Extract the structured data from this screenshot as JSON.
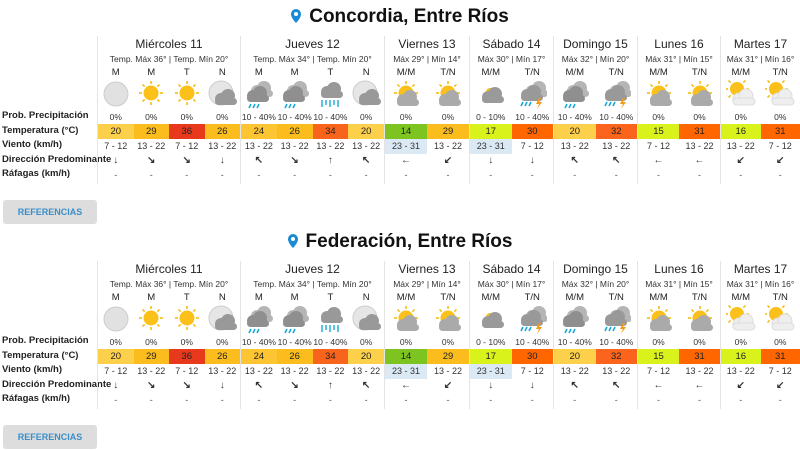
{
  "labels": {
    "prob": "Prob. Precipitación",
    "temp": "Temperatura (°C)",
    "wind": "Viento (km/h)",
    "dir": "Dirección Predominante",
    "raf": "Ráfagas (km/h)"
  },
  "button_label": "REFERENCIAS",
  "accent": "#1a8ad4",
  "locations": [
    {
      "title": "Concordia, Entre Ríos"
    },
    {
      "title": "Federación, Entre Ríos"
    }
  ],
  "days": [
    {
      "name": "Miércoles 11",
      "sub": "Temp. Máx 36° | Temp. Mín 20°",
      "slots": [
        {
          "p": "M",
          "icon": "moon",
          "prob": "0%",
          "t": "20",
          "tc": "#fdd04c",
          "w": "7 - 12",
          "d": "↓",
          "r": "-"
        },
        {
          "p": "M",
          "icon": "sun",
          "prob": "0%",
          "t": "29",
          "tc": "#fbbd1e",
          "w": "13 - 22",
          "d": "↘",
          "r": "-"
        },
        {
          "p": "T",
          "icon": "sun",
          "prob": "0%",
          "t": "36",
          "tc": "#e8391c",
          "w": "7 - 12",
          "d": "↘",
          "r": "-"
        },
        {
          "p": "N",
          "icon": "moon-cloud",
          "prob": "0%",
          "t": "26",
          "tc": "#fbbd1e",
          "w": "13 - 22",
          "d": "↓",
          "r": "-"
        }
      ]
    },
    {
      "name": "Jueves 12",
      "sub": "Temp. Máx 34° | Temp. Mín 20°",
      "slots": [
        {
          "p": "M",
          "icon": "storm",
          "prob": "10 - 40%",
          "t": "24",
          "tc": "#fdc532",
          "w": "13 - 22",
          "d": "↖",
          "r": "-"
        },
        {
          "p": "M",
          "icon": "storm",
          "prob": "10 - 40%",
          "t": "26",
          "tc": "#fbbd1e",
          "w": "13 - 22",
          "d": "↘",
          "r": "-"
        },
        {
          "p": "T",
          "icon": "rain-sun",
          "prob": "10 - 40%",
          "t": "34",
          "tc": "#f8641c",
          "w": "13 - 22",
          "d": "↑",
          "r": "-"
        },
        {
          "p": "N",
          "icon": "moon-cloud",
          "prob": "0%",
          "t": "20",
          "tc": "#fdd04c",
          "w": "13 - 22",
          "d": "↖",
          "r": "-"
        }
      ]
    },
    {
      "name": "Viernes 13",
      "sub": "Máx 29° | Mín 14°",
      "slots": [
        {
          "p": "M/M",
          "icon": "sun-cloud",
          "prob": "0%",
          "t": "14",
          "tc": "#7dc421",
          "w": "23 - 31",
          "wb": "#dbe9f5",
          "d": "←",
          "r": "-"
        },
        {
          "p": "T/N",
          "icon": "sun-cloud",
          "prob": "0%",
          "t": "29",
          "tc": "#fbbd1e",
          "w": "13 - 22",
          "d": "↙",
          "r": "-"
        }
      ]
    },
    {
      "name": "Sábado 14",
      "sub": "Máx 30° | Mín 17°",
      "slots": [
        {
          "p": "M/M",
          "icon": "cloud-sun",
          "prob": "0 - 10%",
          "t": "17",
          "tc": "#d9f21c",
          "w": "23 - 31",
          "wb": "#dbe9f5",
          "d": "↓",
          "r": "-"
        },
        {
          "p": "T/N",
          "icon": "thunder",
          "prob": "10 - 40%",
          "t": "30",
          "tc": "#ff6600",
          "w": "7 - 12",
          "d": "↓",
          "r": "-"
        }
      ]
    },
    {
      "name": "Domingo 15",
      "sub": "Máx 32° | Mín 20°",
      "slots": [
        {
          "p": "M/M",
          "icon": "storm",
          "prob": "10 - 40%",
          "t": "20",
          "tc": "#fdd04c",
          "w": "13 - 22",
          "d": "↖",
          "r": "-"
        },
        {
          "p": "T/N",
          "icon": "thunder",
          "prob": "10 - 40%",
          "t": "32",
          "tc": "#fb641c",
          "w": "13 - 22",
          "d": "↖",
          "r": "-"
        }
      ]
    },
    {
      "name": "Lunes 16",
      "sub": "Máx 31° | Mín 15°",
      "slots": [
        {
          "p": "M/M",
          "icon": "sun-cloud",
          "prob": "0%",
          "t": "15",
          "tc": "#d9f21c",
          "w": "7 - 12",
          "d": "←",
          "r": "-"
        },
        {
          "p": "T/N",
          "icon": "sun-cloud",
          "prob": "0%",
          "t": "31",
          "tc": "#ff6600",
          "w": "13 - 22",
          "d": "←",
          "r": "-"
        }
      ]
    },
    {
      "name": "Martes 17",
      "sub": "Máx 31° | Mín 16°",
      "slots": [
        {
          "p": "M/M",
          "icon": "sun-pale-cloud",
          "prob": "0%",
          "t": "16",
          "tc": "#d9f21c",
          "w": "13 - 22",
          "d": "↙",
          "r": "-"
        },
        {
          "p": "T/N",
          "icon": "sun-pale-cloud",
          "prob": "0%",
          "t": "31",
          "tc": "#ff6600",
          "w": "7 - 12",
          "d": "↙",
          "r": "-"
        }
      ]
    }
  ]
}
